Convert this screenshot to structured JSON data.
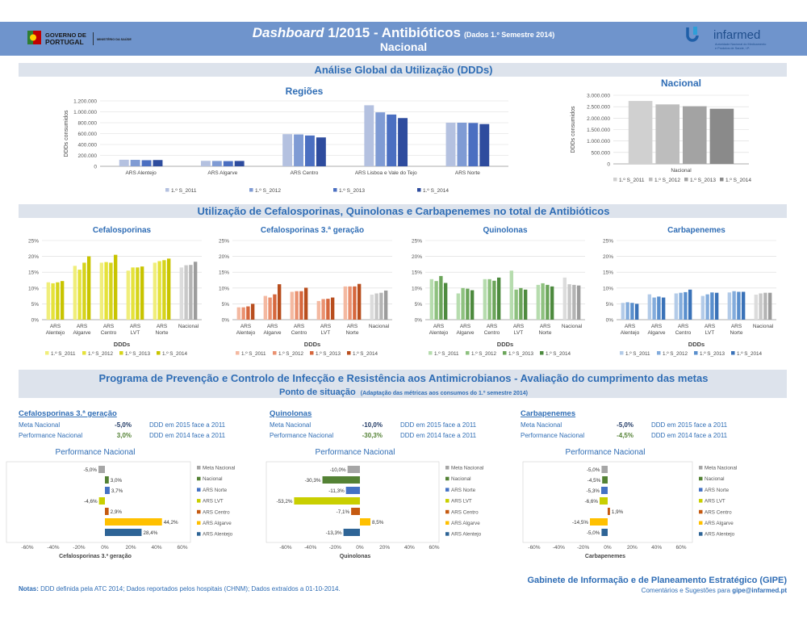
{
  "header": {
    "title_italic": "Dashboard",
    "title_main": " 1/2015 - Antibióticos",
    "title_small": "(Dados 1.º Semestre 2014)",
    "subtitle": "Nacional",
    "gov_line1": "GOVERNO DE",
    "gov_line2": "PORTUGAL",
    "ministry": "MINISTÉRIO DA SAÚDE",
    "brand": "infarmed",
    "brand_sub1": "Autoridade Nacional do Medicamento",
    "brand_sub2": "e Produtos de Saúde, I.P."
  },
  "colors": {
    "header_bg": "#6f94cc",
    "band_bg": "#dde3ec",
    "title_blue": "#2f6db5",
    "s2011_blue": "#b4c1e0",
    "s2012_blue": "#7f9bd4",
    "s2013_blue": "#4b6fc1",
    "s2014_blue": "#2e4c9e",
    "s2011_gray": "#d0d0d0",
    "s2012_gray": "#bdbdbd",
    "s2013_gray": "#a3a3a3",
    "s2014_gray": "#8a8a8a",
    "ceph": [
      "#f0ee7a",
      "#e5e23a",
      "#d6d41b",
      "#c8c400"
    ],
    "ceph3": [
      "#f4b9a1",
      "#ea9170",
      "#d6673d",
      "#b84e1e"
    ],
    "quin": [
      "#b6dcae",
      "#8ec17f",
      "#6ba55a",
      "#4d8a3e"
    ],
    "carb": [
      "#b3cbe8",
      "#83acdc",
      "#5a8fcd",
      "#3a72b8"
    ],
    "nat_gray": [
      "#dcdcdc",
      "#c8c8c8",
      "#b4b4b4",
      "#9c9c9c"
    ],
    "perf_meta": "#a6a6a6",
    "perf_nacional": "#548235",
    "perf_norte": "#4472c4",
    "perf_lvt": "#c9cf00",
    "perf_centro": "#c55a11",
    "perf_algarve": "#ffc000",
    "perf_alentejo": "#2e6496",
    "green_value": "#548235",
    "meta_value": "#1f3864"
  },
  "sections": {
    "global": "Análise Global da Utilização (DDDs)",
    "usage": "Utilização de Cefalosporinas, Quinolonas e Carbapenemes no total de Antibióticos",
    "program_line1": "Programa de Prevenção e Controlo de Infecção e Resistência aos Antimicrobianos - Avaliação do cumprimento das metas",
    "program_line2": "Ponto de situação",
    "program_note": "(Adaptação das métricas aos consumos do 1.º semestre 2014)"
  },
  "chart_data": [
    {
      "type": "bar",
      "title": "Regiões",
      "ylabel": "DDDs consumidos",
      "ylim": [
        0,
        1200000
      ],
      "yticks": [
        "0",
        "200.000",
        "400.000",
        "600.000",
        "800.000",
        "1.000.000",
        "1.200.000"
      ],
      "categories": [
        "ARS Alentejo",
        "ARS Algarve",
        "ARS Centro",
        "ARS Lisboa e Vale do Tejo",
        "ARS Norte"
      ],
      "series": [
        {
          "name": "1.º S_2011",
          "values": [
            120000,
            100000,
            590000,
            1120000,
            800000
          ]
        },
        {
          "name": "1.º S_2012",
          "values": [
            118000,
            98000,
            585000,
            990000,
            800000
          ]
        },
        {
          "name": "1.º S_2013",
          "values": [
            112000,
            95000,
            565000,
            950000,
            795000
          ]
        },
        {
          "name": "1.º S_2014",
          "values": [
            115000,
            98000,
            530000,
            885000,
            775000
          ]
        }
      ]
    },
    {
      "type": "bar",
      "title": "Nacional",
      "ylabel": "DDDs consumidos",
      "ylim": [
        0,
        3000000
      ],
      "yticks": [
        "0",
        "500.000",
        "1.000.000",
        "1.500.000",
        "2.000.000",
        "2.500.000",
        "3.000.000"
      ],
      "categories": [
        "Nacional"
      ],
      "series": [
        {
          "name": "1.º S_2011",
          "values": [
            2750000
          ]
        },
        {
          "name": "1.º S_2012",
          "values": [
            2600000
          ]
        },
        {
          "name": "1.º S_2013",
          "values": [
            2520000
          ]
        },
        {
          "name": "1.º S_2014",
          "values": [
            2410000
          ]
        }
      ]
    },
    {
      "type": "bar",
      "title": "Cefalosporinas",
      "xlabel": "DDDs",
      "ylim": [
        0,
        25
      ],
      "yticks": [
        "0%",
        "5%",
        "10%",
        "15%",
        "20%",
        "25%"
      ],
      "categories": [
        "ARS Alentejo",
        "ARS Algarve",
        "ARS Centro",
        "ARS LVT",
        "ARS Norte",
        "Nacional"
      ],
      "series": [
        {
          "name": "1.º S_2011",
          "values": [
            11.8,
            17.0,
            18.0,
            15.5,
            18.0,
            16.5
          ]
        },
        {
          "name": "1.º S_2012",
          "values": [
            11.5,
            15.8,
            18.2,
            16.5,
            18.5,
            17.2
          ]
        },
        {
          "name": "1.º S_2013",
          "values": [
            11.8,
            18.0,
            18.0,
            16.5,
            18.8,
            17.3
          ]
        },
        {
          "name": "1.º S_2014",
          "values": [
            12.2,
            20.0,
            20.5,
            16.8,
            19.3,
            18.3
          ]
        }
      ]
    },
    {
      "type": "bar",
      "title": "Cefalosporinas 3.ª geração",
      "xlabel": "DDDs",
      "ylim": [
        0,
        25
      ],
      "yticks": [
        "0%",
        "5%",
        "10%",
        "15%",
        "20%",
        "25%"
      ],
      "categories": [
        "ARS Alentejo",
        "ARS Algarve",
        "ARS Centro",
        "ARS LVT",
        "ARS Norte",
        "Nacional"
      ],
      "series": [
        {
          "name": "1.º S_2011",
          "values": [
            3.9,
            7.5,
            8.8,
            5.9,
            10.5,
            7.9
          ]
        },
        {
          "name": "1.º S_2012",
          "values": [
            3.9,
            7.0,
            9.0,
            6.5,
            10.5,
            8.3
          ]
        },
        {
          "name": "1.º S_2013",
          "values": [
            4.2,
            8.0,
            9.0,
            6.6,
            10.5,
            8.5
          ]
        },
        {
          "name": "1.º S_2014",
          "values": [
            5.0,
            11.2,
            10.1,
            7.0,
            11.3,
            9.2
          ]
        }
      ]
    },
    {
      "type": "bar",
      "title": "Quinolonas",
      "xlabel": "DDDs",
      "ylim": [
        0,
        25
      ],
      "yticks": [
        "0%",
        "5%",
        "10%",
        "15%",
        "20%",
        "25%"
      ],
      "categories": [
        "ARS Alentejo",
        "ARS Algarve",
        "ARS Centro",
        "ARS LVT",
        "ARS Norte",
        "Nacional"
      ],
      "series": [
        {
          "name": "1.º S_2011",
          "values": [
            12.8,
            8.3,
            12.8,
            15.5,
            11.0,
            13.3
          ]
        },
        {
          "name": "1.º S_2012",
          "values": [
            12.2,
            10.0,
            12.8,
            9.5,
            11.5,
            11.2
          ]
        },
        {
          "name": "1.º S_2013",
          "values": [
            13.8,
            9.8,
            12.3,
            10.0,
            11.0,
            11.0
          ]
        },
        {
          "name": "1.º S_2014",
          "values": [
            11.6,
            9.3,
            13.3,
            9.5,
            10.5,
            10.8
          ]
        }
      ]
    },
    {
      "type": "bar",
      "title": "Carbapenemes",
      "xlabel": "DDDs",
      "ylim": [
        0,
        25
      ],
      "yticks": [
        "0%",
        "5%",
        "10%",
        "15%",
        "20%",
        "25%"
      ],
      "categories": [
        "ARS Alentejo",
        "ARS Algarve",
        "ARS Centro",
        "ARS LVT",
        "ARS Norte",
        "Nacional"
      ],
      "series": [
        {
          "name": "1.º S_2011",
          "values": [
            5.3,
            8.0,
            8.3,
            7.5,
            8.6,
            7.9
          ]
        },
        {
          "name": "1.º S_2012",
          "values": [
            5.5,
            7.0,
            8.5,
            8.0,
            9.0,
            8.3
          ]
        },
        {
          "name": "1.º S_2013",
          "values": [
            5.3,
            7.3,
            8.7,
            8.6,
            8.8,
            8.5
          ]
        },
        {
          "name": "1.º S_2014",
          "values": [
            5.0,
            7.0,
            9.5,
            8.5,
            8.8,
            8.5
          ]
        }
      ]
    },
    {
      "type": "bar",
      "orientation": "horizontal",
      "title": "Performance Nacional",
      "xlabel": "Cefalosporinas 3.ª geração",
      "xlim": [
        -60,
        60
      ],
      "xticks": [
        "-60%",
        "-40%",
        "-20%",
        "0%",
        "20%",
        "40%",
        "60%"
      ],
      "categories": [
        "Meta Nacional",
        "Nacional",
        "ARS Norte",
        "ARS LVT",
        "ARS Centro",
        "ARS Algarve",
        "ARS Alentejo"
      ],
      "values": [
        -5.0,
        3.0,
        3.7,
        -4.6,
        2.9,
        44.2,
        28.4
      ],
      "labels": [
        "-5,0%",
        "3,0%",
        "3,7%",
        "-4,6%",
        "2,9%",
        "44,2%",
        "28,4%"
      ]
    },
    {
      "type": "bar",
      "orientation": "horizontal",
      "title": "Performance Nacional",
      "xlabel": "Quinolonas",
      "xlim": [
        -60,
        60
      ],
      "xticks": [
        "-60%",
        "-40%",
        "-20%",
        "0%",
        "20%",
        "40%",
        "60%"
      ],
      "categories": [
        "Meta Nacional",
        "Nacional",
        "ARS Norte",
        "ARS LVT",
        "ARS Centro",
        "ARS Algarve",
        "ARS Alentejo"
      ],
      "values": [
        -10.0,
        -30.3,
        -11.3,
        -53.2,
        -7.1,
        8.5,
        -13.3
      ],
      "labels": [
        "-10,0%",
        "-30,3%",
        "-11,3%",
        "-53,2%",
        "-7,1%",
        "8,5%",
        "-13,3%"
      ]
    },
    {
      "type": "bar",
      "orientation": "horizontal",
      "title": "Performance Nacional",
      "xlabel": "Carbapenemes",
      "xlim": [
        -60,
        60
      ],
      "xticks": [
        "-60%",
        "-40%",
        "-20%",
        "0%",
        "20%",
        "40%",
        "60%"
      ],
      "categories": [
        "Meta Nacional",
        "Nacional",
        "ARS Norte",
        "ARS LVT",
        "ARS Centro",
        "ARS Algarve",
        "ARS Alentejo"
      ],
      "values": [
        -5.0,
        -4.5,
        -5.3,
        -6.6,
        1.9,
        -14.5,
        -5.0
      ],
      "labels": [
        "-5,0%",
        "-4,5%",
        "-5,3%",
        "-6,6%",
        "1,9%",
        "-14,5%",
        "-5,0%"
      ]
    }
  ],
  "targets": [
    {
      "title": "Cefalosporinas 3.ª geração",
      "meta_label": "Meta Nacional",
      "meta_value": "-5,0%",
      "meta_desc": "DDD em 2015 face a 2011",
      "perf_label": "Performance Nacional",
      "perf_value": "3,0%",
      "perf_desc": "DDD em 2014 face a 2011"
    },
    {
      "title": "Quinolonas",
      "meta_label": "Meta Nacional",
      "meta_value": "-10,0%",
      "meta_desc": "DDD em 2015 face a 2011",
      "perf_label": "Performance Nacional",
      "perf_value": "-30,3%",
      "perf_desc": "DDD em 2014 face a 2011"
    },
    {
      "title": "Carbapenemes",
      "meta_label": "Meta Nacional",
      "meta_value": "-5,0%",
      "meta_desc": "DDD em 2015 face a 2011",
      "perf_label": "Performance Nacional",
      "perf_value": "-4,5%",
      "perf_desc": "DDD em 2014 face a 2011"
    }
  ],
  "footer": {
    "notes_label": "Notas:",
    "notes_text": " DDD definida pela ATC 2014; Dados reportados pelos hospitais (CHNM); Dados extraídos a 01-10-2014.",
    "gipe": "Gabinete de Informação e de Planeamento Estratégico (GIPE)",
    "comments": "Comentários e Sugestões para ",
    "email": "gipe@infarmed.pt"
  }
}
